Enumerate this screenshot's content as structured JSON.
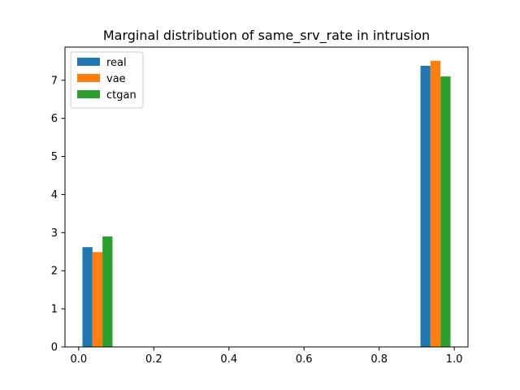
{
  "chart_data": {
    "type": "bar",
    "title": "Marginal distribution of same_srv_rate in intrusion",
    "xlabel": "",
    "ylabel": "",
    "xlim": [
      -0.0365,
      1.0365
    ],
    "ylim": [
      0,
      7.87
    ],
    "xticks": [
      "0.0",
      "0.2",
      "0.4",
      "0.6",
      "0.8",
      "1.0"
    ],
    "yticks": [
      "0",
      "1",
      "2",
      "3",
      "4",
      "5",
      "6",
      "7"
    ],
    "grid": false,
    "legend_position": "top-left",
    "bin_groups": [
      {
        "bin": [
          0.0,
          0.1
        ]
      },
      {
        "bin": [
          0.9,
          1.0
        ]
      }
    ],
    "series": [
      {
        "name": "real",
        "color": "#1f77b4",
        "values": [
          2.62,
          7.38
        ]
      },
      {
        "name": "vae",
        "color": "#ff7f0e",
        "values": [
          2.49,
          7.51
        ]
      },
      {
        "name": "ctgan",
        "color": "#2ca02c",
        "values": [
          2.9,
          7.1
        ]
      }
    ]
  }
}
